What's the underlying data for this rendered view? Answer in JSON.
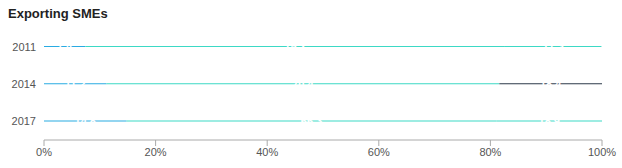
{
  "chart_data": {
    "type": "bar",
    "title": "Exporting SMEs",
    "orientation": "horizontal",
    "stacked": true,
    "data_labels": true,
    "grid": false,
    "categories": [
      "2011",
      "2014",
      "2017"
    ],
    "series": [
      {
        "colors": [
          "#29ABE2",
          "#29ABE2",
          "#29ABE2"
        ],
        "values": [
          7.4,
          11.2,
          14.8
        ]
      },
      {
        "colors": [
          "#3DD9C5",
          "#3DD9C5",
          "#3DD9C5"
        ],
        "values": [
          75.2,
          70.4,
          66.3
        ]
      },
      {
        "colors": [
          "#3DD9C5",
          "#2C3A4A",
          "#3DD9C5"
        ],
        "values": [
          17.3,
          18.4,
          18.9
        ]
      }
    ],
    "xlim": [
      0,
      100
    ],
    "xticks": [
      {
        "value": 0,
        "label": "0%"
      },
      {
        "value": 20,
        "label": "20%"
      },
      {
        "value": 40,
        "label": "40%"
      },
      {
        "value": 60,
        "label": "60%"
      },
      {
        "value": 80,
        "label": "80%"
      },
      {
        "value": 100,
        "label": "100%"
      }
    ]
  }
}
